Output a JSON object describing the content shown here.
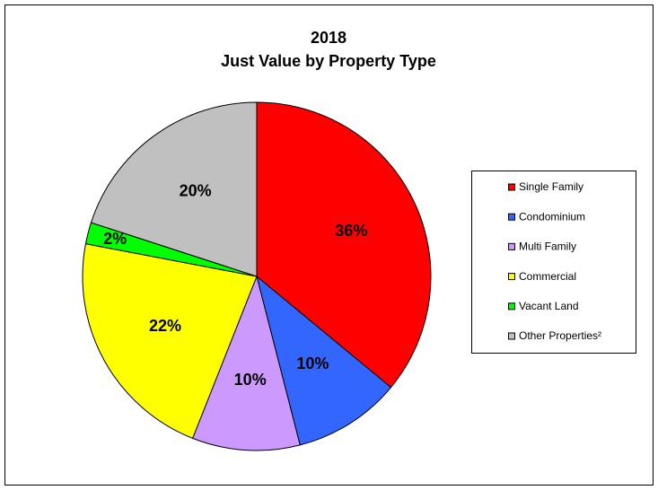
{
  "chart_data": {
    "type": "pie",
    "title": "2018",
    "subtitle": "Just Value by Property Type",
    "categories": [
      "Single Family",
      "Condominium",
      "Multi Family",
      "Commercial",
      "Vacant Land",
      "Other Properties²"
    ],
    "values": [
      36,
      10,
      10,
      22,
      2,
      20
    ],
    "value_labels": [
      "36%",
      "10%",
      "10%",
      "22%",
      "2%",
      "20%"
    ],
    "colors": [
      "#ff0000",
      "#3366ff",
      "#cc99ff",
      "#ffff00",
      "#00ff00",
      "#c0c0c0"
    ],
    "legend": "right"
  }
}
